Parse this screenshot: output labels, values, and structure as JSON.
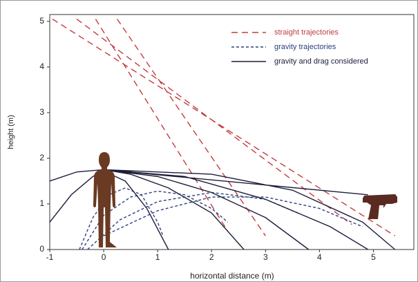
{
  "chart_data": {
    "type": "line",
    "xlabel": "horizontal distance (m)",
    "ylabel": "height (m)",
    "xlim": [
      -1,
      5.75
    ],
    "ylim": [
      0,
      5.15
    ],
    "xticks": [
      -1,
      0,
      1,
      2,
      3,
      4,
      5
    ],
    "yticks": [
      0,
      1,
      2,
      3,
      4,
      5
    ],
    "legend": "upper right",
    "series": [
      {
        "name": "straight trajectories",
        "color": "#c23b3e",
        "style": "long-dash",
        "x": [
          -0.95,
          5.4,
          null,
          -0.5,
          4.6,
          null,
          -0.15,
          2.3,
          null,
          0.25,
          3.0
        ],
        "values": [
          5.05,
          0.3,
          null,
          5.05,
          0.55,
          null,
          5.05,
          0.4,
          null,
          5.05,
          0.3
        ]
      },
      {
        "name": "gravity trajectories",
        "color": "#2b3f7c",
        "style": "short-dash",
        "x": [
          -0.45,
          -0.2,
          0.1,
          0.4,
          0.7,
          1.0,
          1.1,
          null,
          -0.4,
          0,
          0.5,
          1.0,
          1.5,
          2.0,
          2.3,
          null,
          -0.3,
          0.3,
          1,
          2,
          3,
          3.6,
          null,
          0,
          1,
          2,
          3,
          4,
          4.8
        ],
        "values": [
          0,
          0.7,
          1.2,
          1.35,
          1.2,
          0.6,
          0.3,
          null,
          0,
          0.75,
          1.15,
          1.28,
          1.2,
          0.9,
          0.6,
          null,
          0,
          0.65,
          1.05,
          1.25,
          1.1,
          0.8,
          null,
          0.3,
          0.85,
          1.15,
          1.15,
          0.9,
          0.5
        ]
      },
      {
        "name": "gravity and drag considered",
        "color": "#1c1c3a",
        "style": "solid",
        "x": [
          -1,
          -0.6,
          -0.2,
          0,
          0.4,
          0.8,
          1.2,
          null,
          -1,
          -0.5,
          0,
          0.5,
          1.2,
          2.0,
          2.6,
          null,
          0,
          1,
          2,
          3,
          3.8,
          null,
          0,
          1.5,
          3,
          4.2,
          4.9,
          null,
          0,
          2,
          3.5,
          4.8,
          5.4,
          null,
          0,
          4.9
        ],
        "values": [
          0.6,
          1.2,
          1.6,
          1.72,
          1.5,
          0.9,
          0,
          null,
          1.5,
          1.7,
          1.75,
          1.65,
          1.35,
          0.8,
          0,
          null,
          1.75,
          1.6,
          1.25,
          0.7,
          0,
          null,
          1.75,
          1.6,
          1.1,
          0.5,
          0,
          null,
          1.75,
          1.65,
          1.3,
          0.6,
          0,
          null,
          1.75,
          1.2
        ]
      }
    ]
  }
}
